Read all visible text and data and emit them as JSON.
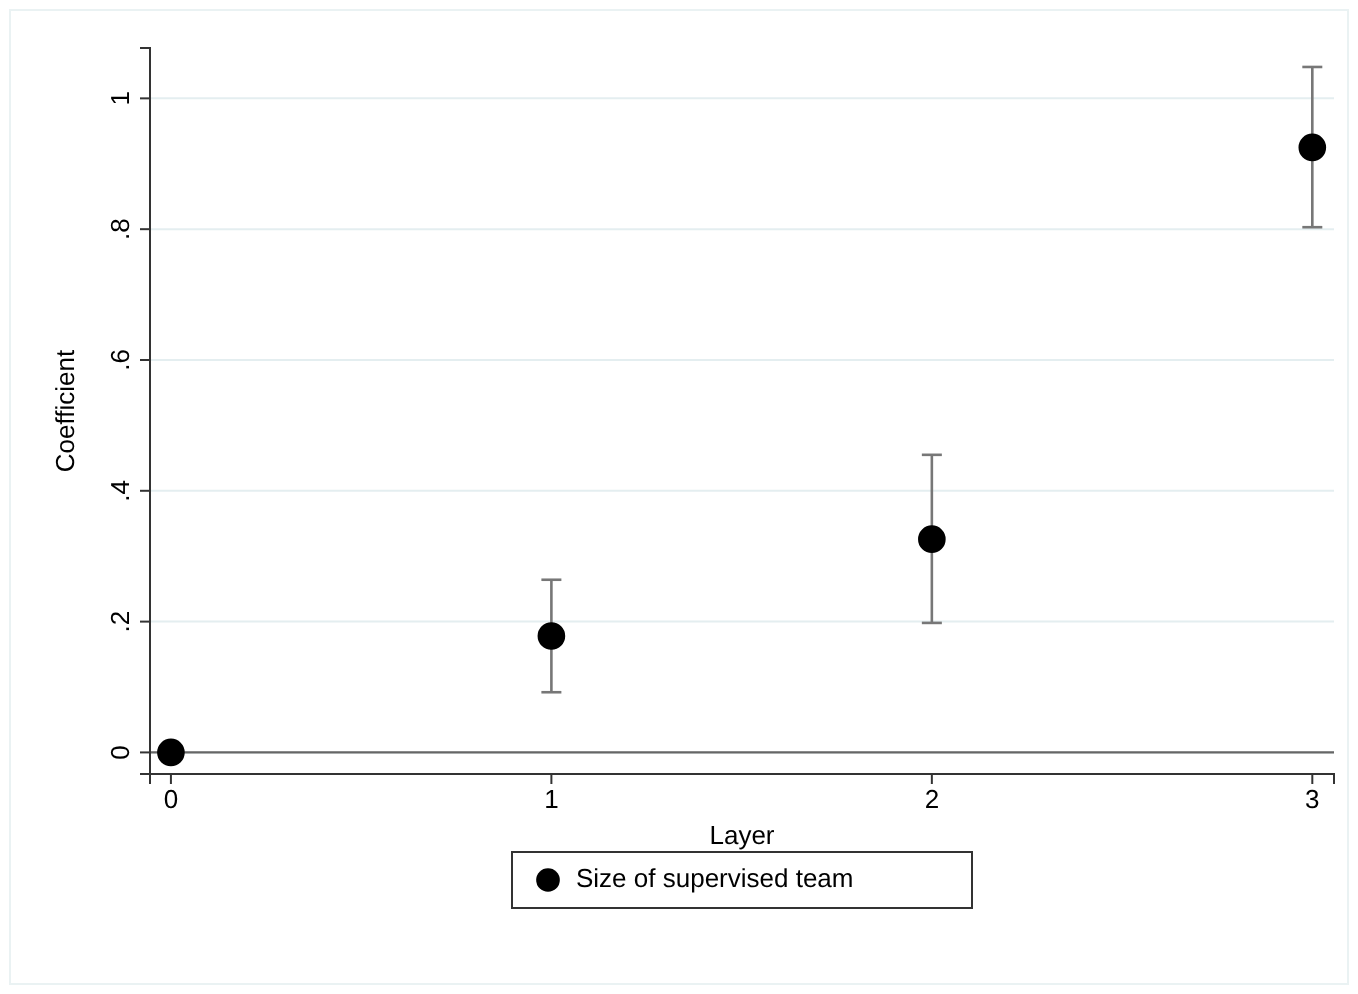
{
  "chart_data": {
    "type": "scatter",
    "xlabel": "Layer",
    "ylabel": "Coefficient",
    "x": [
      0,
      1,
      2,
      3
    ],
    "series": [
      {
        "name": "Size of supervised team",
        "color": "#000000",
        "values": [
          0,
          0.178,
          0.326,
          0.925
        ],
        "errors": [
          null,
          [
            0.092,
            0.264
          ],
          [
            0.198,
            0.455
          ],
          [
            0.803,
            1.048
          ]
        ]
      }
    ],
    "xlim": [
      -0.055,
      3.057
    ],
    "xticks": [
      0,
      1,
      2,
      3
    ],
    "ylim": [
      -0.033,
      1.077
    ],
    "yticks": [
      0,
      {
        "value": 0.2,
        "label": ".2"
      },
      {
        "value": 0.4,
        "label": ".4"
      },
      {
        "value": 0.6,
        "label": ".6"
      },
      {
        "value": 0.8,
        "label": ".8"
      },
      1
    ],
    "ref_lines": [
      {
        "axis": "y",
        "value": 0,
        "color": "#666666"
      }
    ],
    "grid": "y",
    "legend": "bottom",
    "marker": "circle"
  }
}
